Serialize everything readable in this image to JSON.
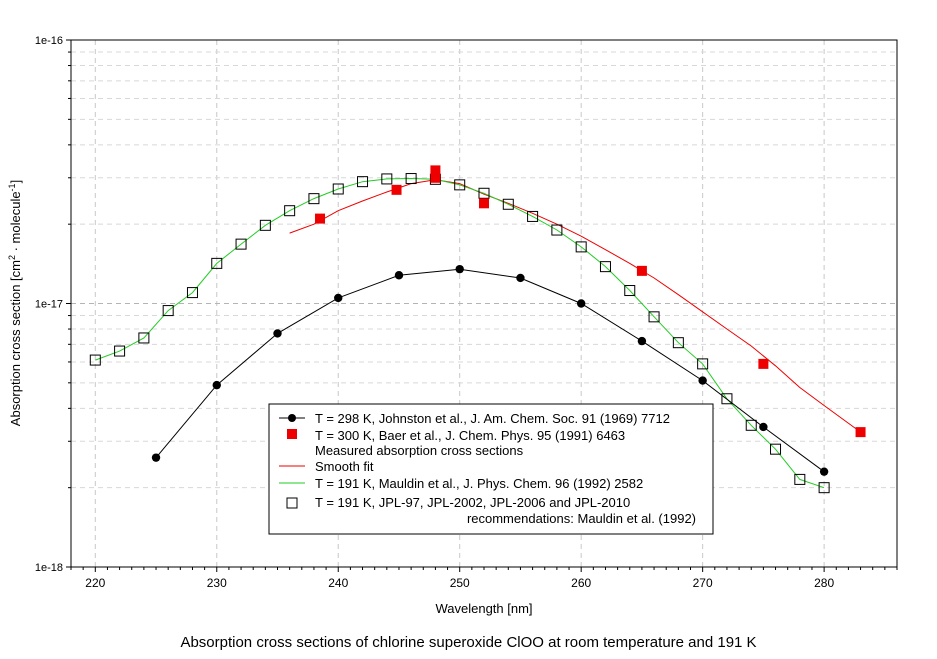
{
  "chart_data": {
    "type": "line",
    "title": "",
    "caption": "Absorption cross sections of chlorine superoxide ClOO at room temperature and 191 K",
    "xlabel": "Wavelength [nm]",
    "ylabel_main": "Absorption cross section [cm",
    "ylabel_sup1": "2",
    "ylabel_mid": " · molecule",
    "ylabel_sup2": "-1",
    "ylabel_end": "]",
    "xlim": [
      218,
      286
    ],
    "ylim": [
      1e-18,
      1e-16
    ],
    "yscale": "log",
    "grid": true,
    "legend_position": "lower-center",
    "x_ticks": [
      220,
      230,
      240,
      250,
      260,
      270,
      280
    ],
    "x_tick_labels": [
      "220",
      "230",
      "240",
      "250",
      "260",
      "270",
      "280"
    ],
    "y_ticks": [
      1e-18,
      1e-17,
      1e-16
    ],
    "y_tick_labels": [
      "1e-18",
      "1e-17",
      "1e-16"
    ],
    "series": [
      {
        "name": "T = 298 K, Johnston et al., J. Am. Chem. Soc. 91 (1969) 7712",
        "style": "line-circle",
        "color": "#000000",
        "x": [
          225,
          230,
          235,
          240,
          245,
          250,
          255,
          260,
          265,
          270,
          275,
          280
        ],
        "y": [
          2.6e-18,
          4.9e-18,
          7.7e-18,
          1.05e-17,
          1.28e-17,
          1.35e-17,
          1.25e-17,
          1e-17,
          7.2e-18,
          5.1e-18,
          3.4e-18,
          2.3e-18
        ]
      },
      {
        "name": "T = 300 K, Baer et al., J. Chem. Phys. 95 (1991) 6463",
        "name_line2": "Measured absorption cross sections",
        "style": "marker-square-filled",
        "color": "#ee0000",
        "x": [
          238.5,
          244.8,
          248,
          248,
          252,
          265,
          275,
          283
        ],
        "y": [
          2.1e-17,
          2.7e-17,
          3.2e-17,
          3e-17,
          2.4e-17,
          1.33e-17,
          5.9e-18,
          3.25e-18
        ]
      },
      {
        "name": "Smooth fit",
        "style": "line",
        "color": "#ee0000",
        "x": [
          236,
          238,
          240,
          242,
          244,
          246,
          248,
          250,
          252,
          254,
          256,
          258,
          260,
          262,
          264,
          266,
          268,
          270,
          272,
          274,
          276,
          278,
          280,
          283
        ],
        "y": [
          1.85e-17,
          2e-17,
          2.25e-17,
          2.45e-17,
          2.65e-17,
          2.85e-17,
          2.95e-17,
          2.85e-17,
          2.6e-17,
          2.4e-17,
          2.2e-17,
          2e-17,
          1.8e-17,
          1.6e-17,
          1.42e-17,
          1.25e-17,
          1.08e-17,
          9.3e-18,
          8e-18,
          6.9e-18,
          5.8e-18,
          4.8e-18,
          4.1e-18,
          3.25e-18
        ]
      },
      {
        "name": "T = 191 K, Mauldin et al., J. Phys. Chem. 96 (1992) 2582",
        "style": "line",
        "color": "#22cc22",
        "x": [
          220,
          222,
          224,
          226,
          228,
          230,
          232,
          234,
          236,
          238,
          240,
          242,
          244,
          246,
          248,
          250,
          252,
          254,
          256,
          258,
          260,
          262,
          264,
          266,
          268,
          270,
          272,
          274,
          276,
          278,
          280
        ],
        "y": [
          6.1e-18,
          6.6e-18,
          7.4e-18,
          9.4e-18,
          1.1e-17,
          1.42e-17,
          1.68e-17,
          1.98e-17,
          2.25e-17,
          2.5e-17,
          2.72e-17,
          2.9e-17,
          2.97e-17,
          2.98e-17,
          2.96e-17,
          2.82e-17,
          2.62e-17,
          2.38e-17,
          2.14e-17,
          1.9e-17,
          1.64e-17,
          1.38e-17,
          1.12e-17,
          8.9e-18,
          7.1e-18,
          5.9e-18,
          4.35e-18,
          3.45e-18,
          2.8e-18,
          2.15e-18,
          2e-18
        ]
      },
      {
        "name": "T = 191 K, JPL-97, JPL-2002, JPL-2006 and JPL-2010",
        "name_line2": "recommendations: Mauldin et al. (1992)",
        "style": "marker-square-open",
        "color": "#000000",
        "x": [
          220,
          222,
          224,
          226,
          228,
          230,
          232,
          234,
          236,
          238,
          240,
          242,
          244,
          246,
          248,
          250,
          252,
          254,
          256,
          258,
          260,
          262,
          264,
          266,
          268,
          270,
          272,
          274,
          276,
          278,
          280
        ],
        "y": [
          6.1e-18,
          6.6e-18,
          7.4e-18,
          9.4e-18,
          1.1e-17,
          1.42e-17,
          1.68e-17,
          1.98e-17,
          2.25e-17,
          2.5e-17,
          2.72e-17,
          2.9e-17,
          2.97e-17,
          2.98e-17,
          2.96e-17,
          2.82e-17,
          2.62e-17,
          2.38e-17,
          2.14e-17,
          1.9e-17,
          1.64e-17,
          1.38e-17,
          1.12e-17,
          8.9e-18,
          7.1e-18,
          5.9e-18,
          4.35e-18,
          3.45e-18,
          2.8e-18,
          2.15e-18,
          2e-18
        ]
      }
    ]
  }
}
